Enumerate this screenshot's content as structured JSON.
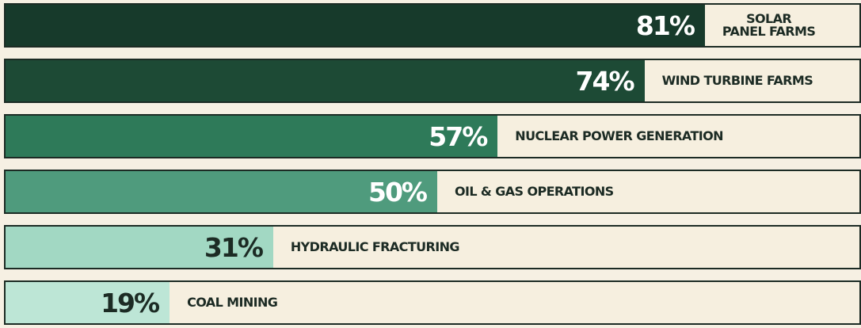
{
  "chart_data": {
    "type": "bar",
    "orientation": "horizontal",
    "categories": [
      "SOLAR\nPANEL FARMS",
      "WIND TURBINE FARMS",
      "NUCLEAR POWER GENERATION",
      "OIL & GAS OPERATIONS",
      "HYDRAULIC FRACTURING",
      "COAL MINING"
    ],
    "values": [
      81,
      74,
      57,
      50,
      31,
      19
    ],
    "value_labels": [
      "81%",
      "74%",
      "57%",
      "50%",
      "31%",
      "19%"
    ],
    "colors": [
      "#173a2b",
      "#1d4a35",
      "#2e7a59",
      "#4f9b7d",
      "#a2d8c3",
      "#bde6d6"
    ],
    "xlim": [
      0,
      100
    ]
  }
}
